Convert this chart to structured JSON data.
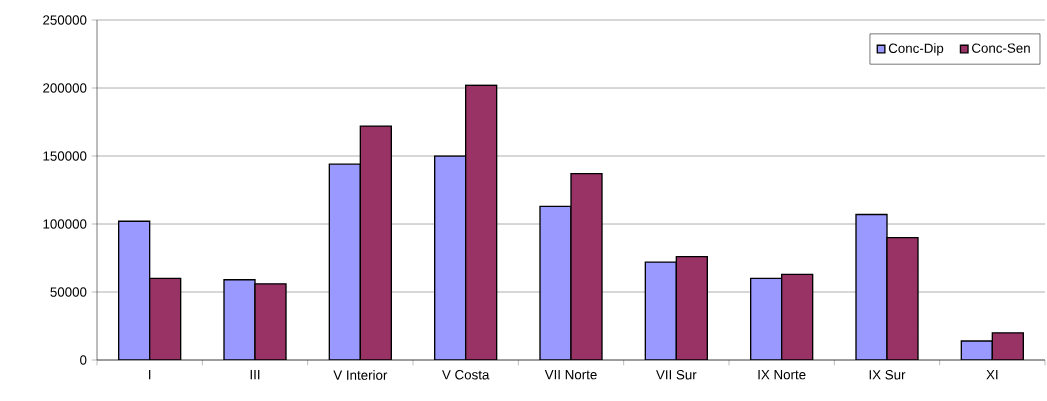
{
  "chart_data": {
    "type": "bar",
    "categories": [
      "I",
      "III",
      "V Interior",
      "V Costa",
      "VII Norte",
      "VII Sur",
      "IX Norte",
      "IX Sur",
      "XI"
    ],
    "series": [
      {
        "name": "Conc-Dip",
        "color": "#9999ff",
        "values": [
          102000,
          59000,
          144000,
          150000,
          113000,
          72000,
          60000,
          107000,
          14000
        ]
      },
      {
        "name": "Conc-Sen",
        "color": "#993366",
        "values": [
          60000,
          56000,
          172000,
          202000,
          137000,
          76000,
          63000,
          90000,
          20000
        ]
      }
    ],
    "ylim": [
      0,
      250000
    ],
    "yticks": [
      0,
      50000,
      100000,
      150000,
      200000,
      250000
    ],
    "grid": "y",
    "legend": "top right"
  }
}
